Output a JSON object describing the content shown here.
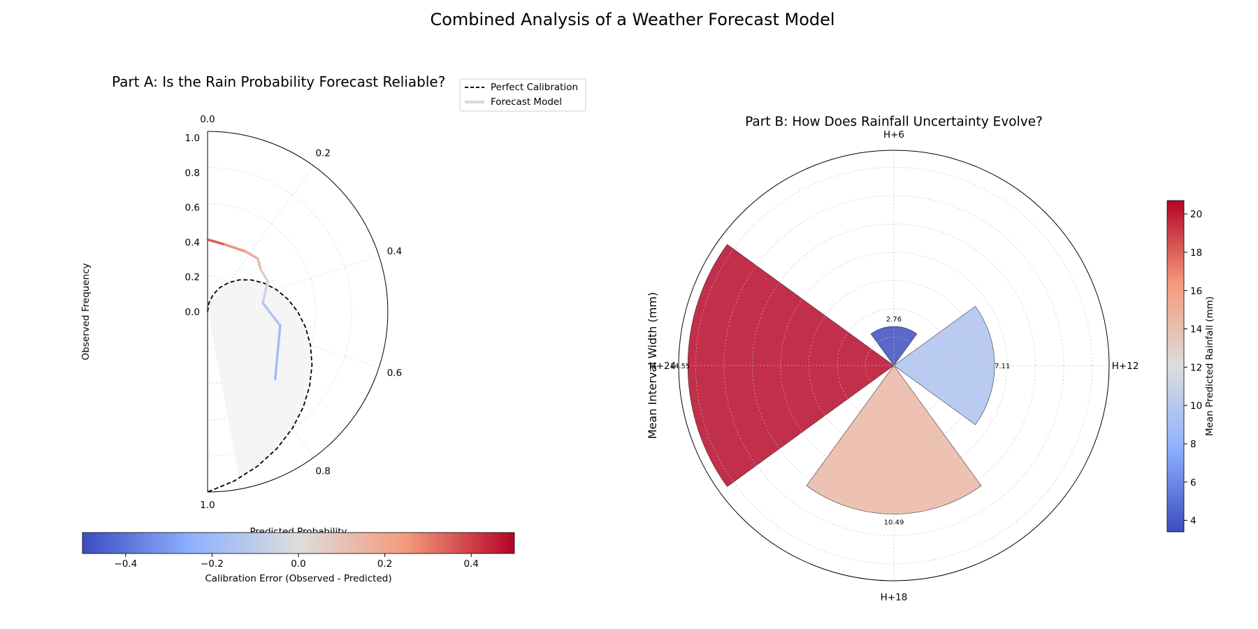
{
  "figure": {
    "title": "Combined Analysis of a Weather Forecast Model"
  },
  "chart_data": [
    {
      "type": "line",
      "projection": "polar-half",
      "title": "Part A: Is the Rain Probability Forecast Reliable?",
      "xlabel": "Predicted Probability",
      "ylabel": "Observed Frequency",
      "theta_ticks": [
        "0.0",
        "0.2",
        "0.4",
        "0.6",
        "0.8",
        "1.0"
      ],
      "r_ticks": [
        "0.0",
        "0.2",
        "0.4",
        "0.6",
        "0.8",
        "1.0"
      ],
      "xlim": [
        0,
        1
      ],
      "ylim": [
        0,
        1
      ],
      "grid": true,
      "legend_position": "top-right",
      "legend": [
        "Perfect Calibration",
        "Forecast Model"
      ],
      "series": [
        {
          "name": "Perfect Calibration",
          "style": "dashed",
          "color": "#000000",
          "x": [
            0.0,
            0.05,
            0.1,
            0.15,
            0.2,
            0.25,
            0.3,
            0.35,
            0.4,
            0.45,
            0.5,
            0.55,
            0.6,
            0.65,
            0.7,
            0.75,
            0.8,
            0.85,
            0.9,
            0.95,
            1.0
          ],
          "y": [
            0.0,
            0.05,
            0.1,
            0.15,
            0.2,
            0.25,
            0.3,
            0.35,
            0.4,
            0.45,
            0.5,
            0.55,
            0.6,
            0.65,
            0.7,
            0.75,
            0.8,
            0.85,
            0.9,
            0.95,
            1.0
          ]
        },
        {
          "name": "Forecast Model",
          "colored_by": "calibration_error",
          "x": [
            0.0,
            0.08,
            0.18,
            0.24,
            0.29,
            0.35,
            0.45,
            0.56,
            0.75
          ],
          "y": [
            0.4,
            0.385,
            0.395,
            0.405,
            0.375,
            0.375,
            0.31,
            0.41,
            0.53
          ]
        }
      ],
      "colorbar": {
        "label": "Calibration Error (Observed - Predicted)",
        "min": -0.5,
        "max": 0.5,
        "ticks": [
          "−0.4",
          "−0.2",
          "0.0",
          "0.2",
          "0.4"
        ],
        "tick_values": [
          -0.4,
          -0.2,
          0.0,
          0.2,
          0.4
        ],
        "colormap": "coolwarm"
      }
    },
    {
      "type": "bar",
      "projection": "polar",
      "title": "Part B: How Does Rainfall Uncertainty Evolve?",
      "ylabel": "Mean Interval Width (mm)",
      "categories": [
        "H+6",
        "H+12",
        "H+18",
        "H+24"
      ],
      "values": [
        2.76,
        7.11,
        10.49,
        14.55
      ],
      "value_labels": [
        "2.76",
        "7.11",
        "10.49",
        "14.55"
      ],
      "color_values": [
        3.5,
        9.5,
        14.5,
        20.5
      ],
      "ylim": [
        0,
        15.2
      ],
      "grid": true,
      "colorbar": {
        "label": "Mean Predicted Rainfall (mm)",
        "min": 3.4,
        "max": 20.7,
        "ticks": [
          "4",
          "6",
          "8",
          "10",
          "12",
          "14",
          "16",
          "18",
          "20"
        ],
        "tick_values": [
          4,
          6,
          8,
          10,
          12,
          14,
          16,
          18,
          20
        ],
        "colormap": "coolwarm"
      }
    }
  ]
}
